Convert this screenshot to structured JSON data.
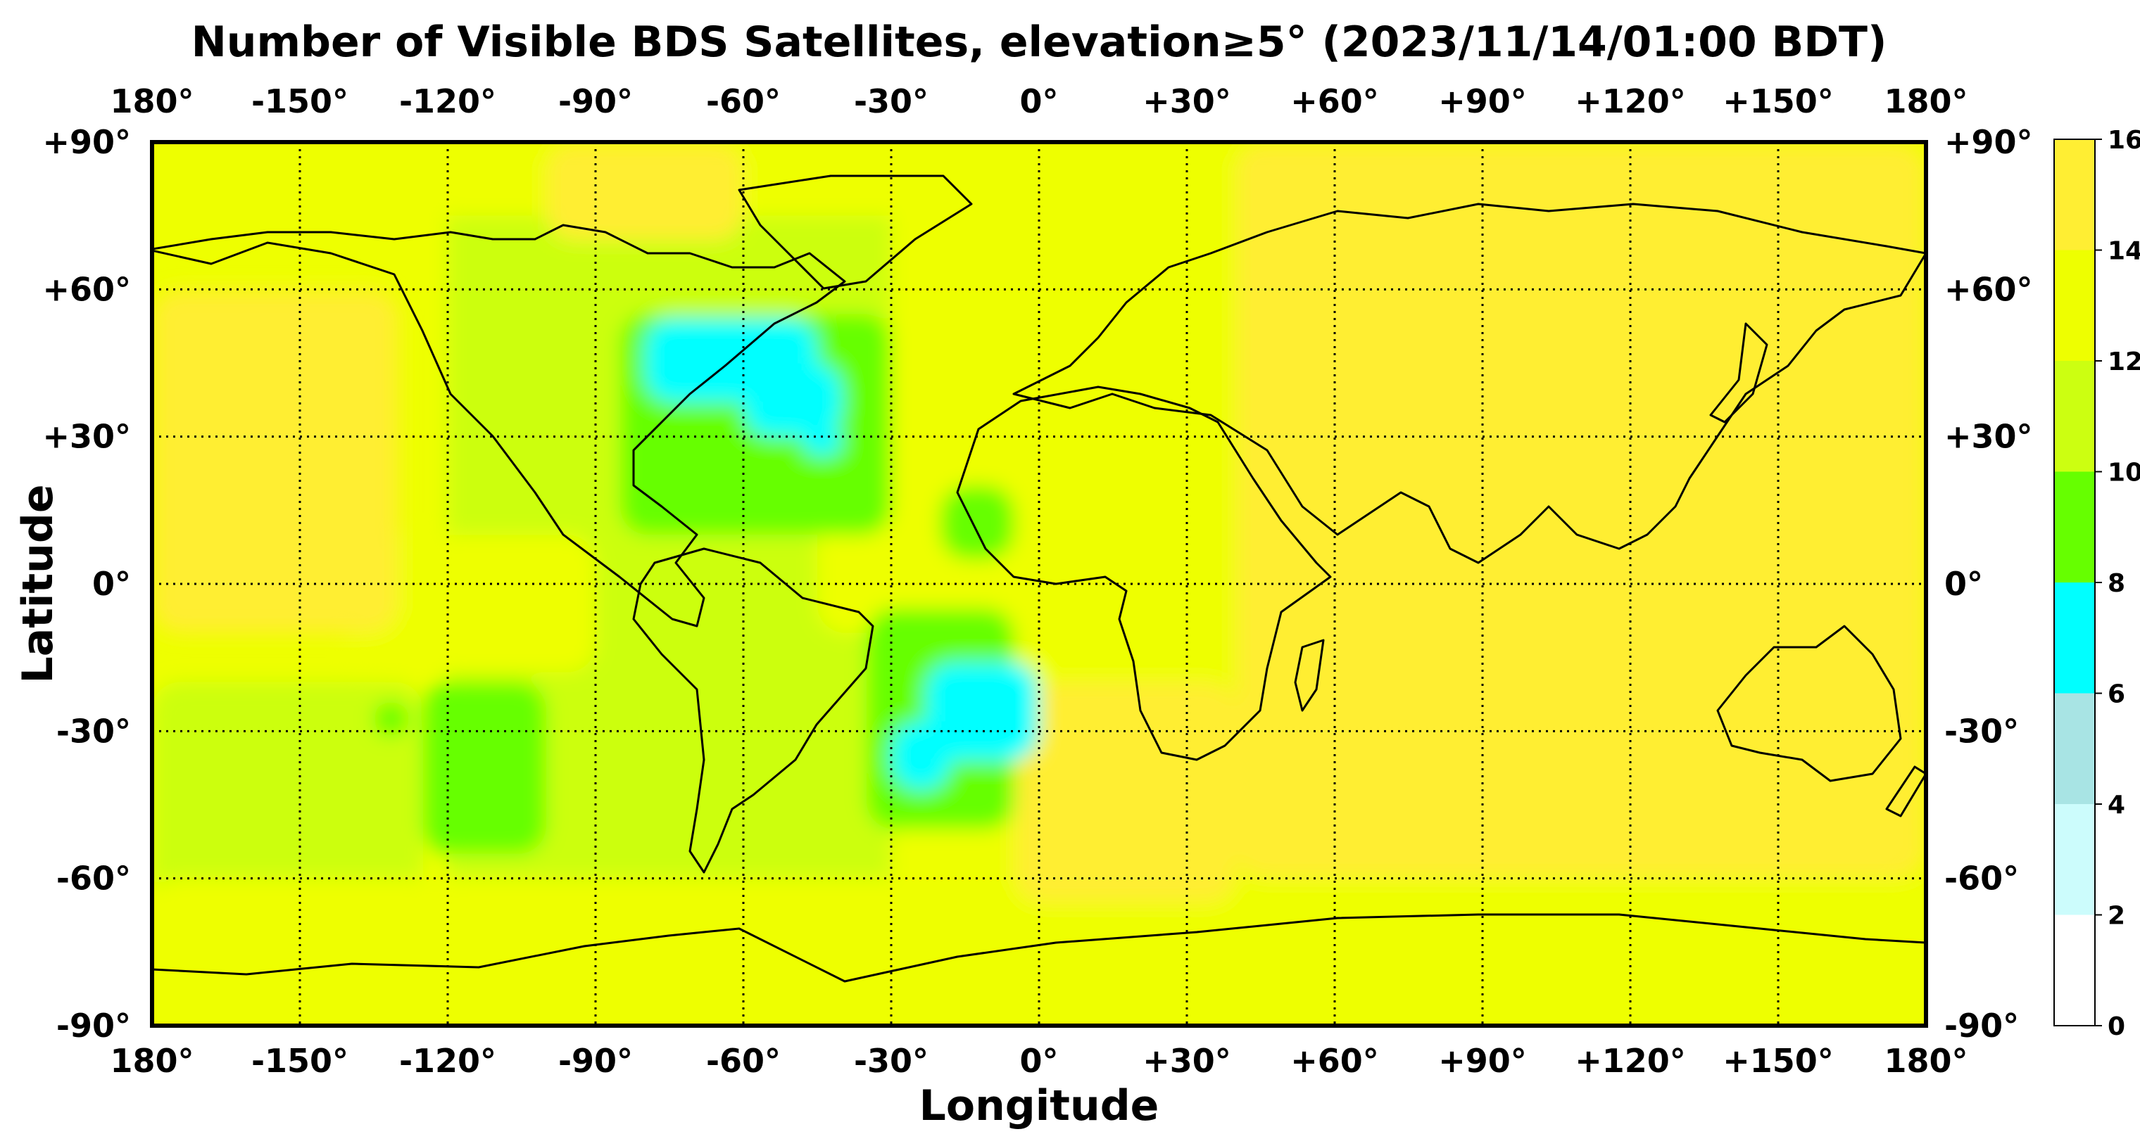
{
  "chart_data": {
    "type": "heatmap",
    "title": "Number of Visible BDS Satellites, elevation≥5° (2023/11/14/01:00 BDT)",
    "xlabel": "Longitude",
    "ylabel": "Latitude",
    "xlim": [
      -180,
      180
    ],
    "ylim": [
      -90,
      90
    ],
    "grid": true,
    "x_ticks": [
      -180,
      -150,
      -120,
      -90,
      -60,
      -30,
      0,
      30,
      60,
      90,
      120,
      150,
      180
    ],
    "x_tick_labels": [
      "180°",
      "-150°",
      "-120°",
      "-90°",
      "-60°",
      "-30°",
      "0°",
      "+30°",
      "+60°",
      "+90°",
      "+120°",
      "+150°",
      "180°"
    ],
    "y_ticks": [
      90,
      60,
      30,
      0,
      -30,
      -60,
      -90
    ],
    "y_tick_labels": [
      "+90°",
      "+60°",
      "+30°",
      "0°",
      "-30°",
      "-60°",
      "-90°"
    ],
    "colorbar": {
      "levels": [
        0,
        2,
        4,
        6,
        8,
        10,
        12,
        14,
        16
      ],
      "tick_labels": [
        "0",
        "2",
        "4",
        "6",
        "8",
        "10",
        "12",
        "14",
        "16"
      ],
      "colors": [
        "#ffffff",
        "#ccfcfc",
        "#a8e4e4",
        "#00ffff",
        "#66ff00",
        "#ccff11",
        "#eeff00",
        "#ffee33"
      ]
    },
    "regions": [
      {
        "value": 11,
        "lon": [
          -120,
          45
        ],
        "lat": [
          -90,
          90
        ]
      },
      {
        "value": 11,
        "lon": [
          -180,
          -125
        ],
        "lat": [
          -65,
          -20
        ]
      },
      {
        "value": 12.5,
        "lon": [
          -180,
          180
        ],
        "lat": [
          -90,
          -60
        ]
      },
      {
        "value": 12.5,
        "lon": [
          -180,
          180
        ],
        "lat": [
          75,
          90
        ]
      },
      {
        "value": 12.5,
        "lon": [
          -30,
          45
        ],
        "lat": [
          -70,
          90
        ]
      },
      {
        "value": 12.5,
        "lon": [
          -140,
          -90
        ],
        "lat": [
          -18,
          10
        ]
      },
      {
        "value": 12.5,
        "lon": [
          -45,
          10
        ],
        "lat": [
          -10,
          40
        ]
      },
      {
        "value": 15,
        "lon": [
          40,
          180
        ],
        "lat": [
          -60,
          90
        ]
      },
      {
        "value": 15,
        "lon": [
          -180,
          -130
        ],
        "lat": [
          -10,
          60
        ]
      },
      {
        "value": 15,
        "lon": [
          -100,
          -60
        ],
        "lat": [
          70,
          90
        ]
      },
      {
        "value": 15,
        "lon": [
          -5,
          40
        ],
        "lat": [
          -65,
          -20
        ]
      },
      {
        "value": 9,
        "lon": [
          -85,
          -30
        ],
        "lat": [
          10,
          55
        ]
      },
      {
        "value": 9,
        "lon": [
          -125,
          -100
        ],
        "lat": [
          -55,
          -20
        ]
      },
      {
        "value": 9,
        "lon": [
          -35,
          -5
        ],
        "lat": [
          -50,
          -5
        ]
      },
      {
        "value": 9,
        "lon": [
          -20,
          -5
        ],
        "lat": [
          5,
          20
        ]
      },
      {
        "value": 9,
        "lon": [
          -135,
          -128
        ],
        "lat": [
          -31,
          -24
        ]
      },
      {
        "value": 7,
        "lon": [
          -80,
          -45
        ],
        "lat": [
          37,
          54
        ]
      },
      {
        "value": 7,
        "lon": [
          -60,
          -40
        ],
        "lat": [
          30,
          45
        ]
      },
      {
        "value": 7,
        "lon": [
          -48,
          -40
        ],
        "lat": [
          26,
          32
        ]
      },
      {
        "value": 7,
        "lon": [
          -23,
          0
        ],
        "lat": [
          -36,
          -16
        ]
      },
      {
        "value": 7,
        "lon": [
          -30,
          -18
        ],
        "lat": [
          -42,
          -28
        ]
      }
    ]
  }
}
